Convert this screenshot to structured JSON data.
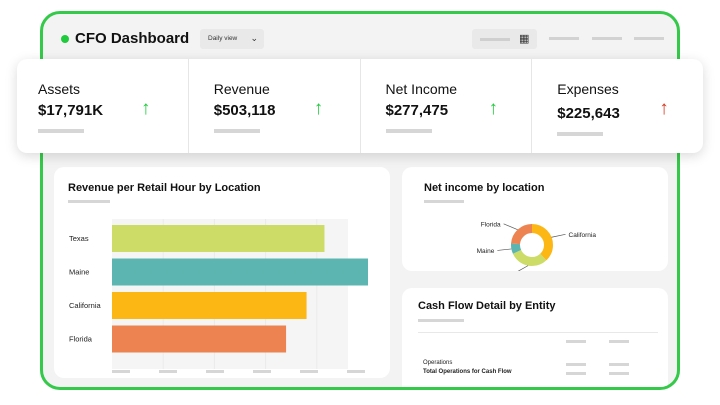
{
  "header": {
    "title": "CFO Dashboard",
    "view_select": "Daily view"
  },
  "colors": {
    "accent": "#35c94a",
    "up": "#1fcb3c",
    "down": "#d9341b",
    "texas": "#cddc67",
    "maine": "#5db5b1",
    "california": "#fdb714",
    "florida": "#ec8350"
  },
  "kpis": [
    {
      "label": "Assets",
      "value": "$17,791K",
      "trend": "up"
    },
    {
      "label": "Revenue",
      "value": "$503,118",
      "trend": "up"
    },
    {
      "label": "Net Income",
      "value": "$277,475",
      "trend": "up"
    },
    {
      "label": "Expenses",
      "value": "$225,643",
      "trend": "up-red"
    }
  ],
  "revenue_card": {
    "title": "Revenue per Retail Hour by Location"
  },
  "income_card": {
    "title": "Net income by location"
  },
  "cashflow_card": {
    "title": "Cash Flow Detail by Entity",
    "row_label": "Operations",
    "row_total": "Total Operations for Cash Flow"
  },
  "chart_data": [
    {
      "type": "bar",
      "orientation": "horizontal",
      "title": "Revenue per Retail Hour by Location",
      "categories": [
        "Texas",
        "Maine",
        "California",
        "Florida"
      ],
      "values": [
        83,
        100,
        76,
        68
      ],
      "xlim": [
        0,
        100
      ],
      "grid": true
    },
    {
      "type": "pie",
      "style": "donut",
      "title": "Net income by location",
      "categories": [
        "California",
        "Texas",
        "Maine",
        "Florida"
      ],
      "values": [
        38,
        30,
        8,
        24
      ]
    }
  ]
}
